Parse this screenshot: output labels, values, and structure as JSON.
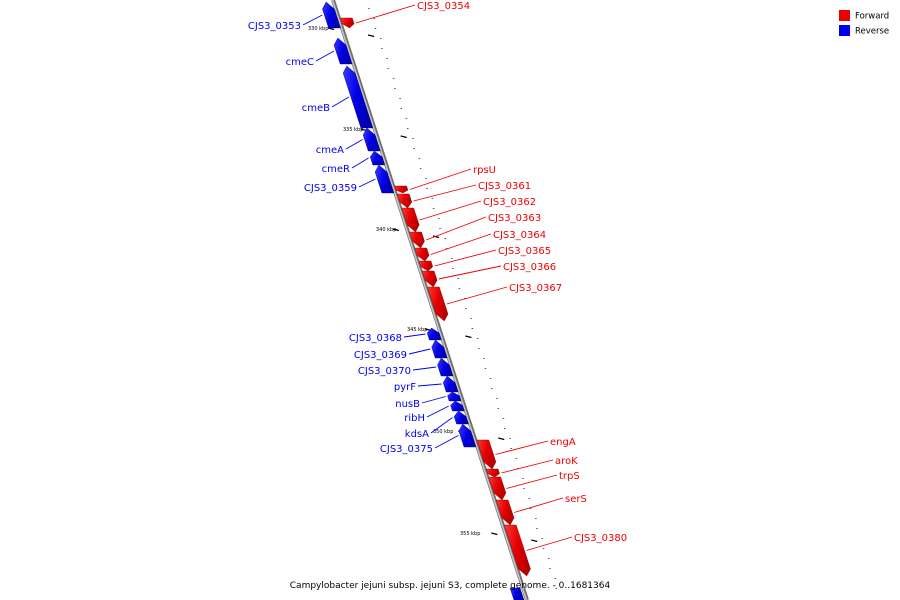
{
  "caption": "Campylobacter jejuni subsp. jejuni S3, complete genome. - 0..1681364",
  "legend": [
    {
      "label": "Forward",
      "color": "#ee0000"
    },
    {
      "label": "Reverse",
      "color": "#0000ee"
    }
  ],
  "colors": {
    "forward": "#ee0000",
    "reverse": "#0000ee",
    "backbone": "#9a9a9a"
  },
  "ticks": [
    {
      "pos": 330,
      "label": "330 kbp"
    },
    {
      "pos": 335,
      "label": "335 kbp"
    },
    {
      "pos": 340,
      "label": "340 kbp"
    },
    {
      "pos": 345,
      "label": "345 kbp"
    },
    {
      "pos": 350,
      "label": "350 kbp"
    },
    {
      "pos": 355,
      "label": "355 kbp"
    }
  ],
  "genes": [
    {
      "name": "CJS3_0353",
      "strand": "reverse"
    },
    {
      "name": "CJS3_0354",
      "strand": "forward"
    },
    {
      "name": "cmeC",
      "strand": "reverse"
    },
    {
      "name": "cmeB",
      "strand": "reverse"
    },
    {
      "name": "cmeA",
      "strand": "reverse"
    },
    {
      "name": "cmeR",
      "strand": "reverse"
    },
    {
      "name": "CJS3_0359",
      "strand": "reverse"
    },
    {
      "name": "rpsU",
      "strand": "forward"
    },
    {
      "name": "CJS3_0361",
      "strand": "forward"
    },
    {
      "name": "CJS3_0362",
      "strand": "forward"
    },
    {
      "name": "CJS3_0363",
      "strand": "forward"
    },
    {
      "name": "CJS3_0364",
      "strand": "forward"
    },
    {
      "name": "CJS3_0365",
      "strand": "forward"
    },
    {
      "name": "CJS3_0366",
      "strand": "forward"
    },
    {
      "name": "CJS3_0367",
      "strand": "forward"
    },
    {
      "name": "CJS3_0368",
      "strand": "reverse"
    },
    {
      "name": "CJS3_0369",
      "strand": "reverse"
    },
    {
      "name": "CJS3_0370",
      "strand": "reverse"
    },
    {
      "name": "pyrF",
      "strand": "reverse"
    },
    {
      "name": "nusB",
      "strand": "reverse"
    },
    {
      "name": "ribH",
      "strand": "reverse"
    },
    {
      "name": "kdsA",
      "strand": "reverse"
    },
    {
      "name": "CJS3_0375",
      "strand": "reverse"
    },
    {
      "name": "engA",
      "strand": "forward"
    },
    {
      "name": "aroK",
      "strand": "forward"
    },
    {
      "name": "trpS",
      "strand": "forward"
    },
    {
      "name": "serS",
      "strand": "forward"
    },
    {
      "name": "CJS3_0380",
      "strand": "forward"
    }
  ]
}
